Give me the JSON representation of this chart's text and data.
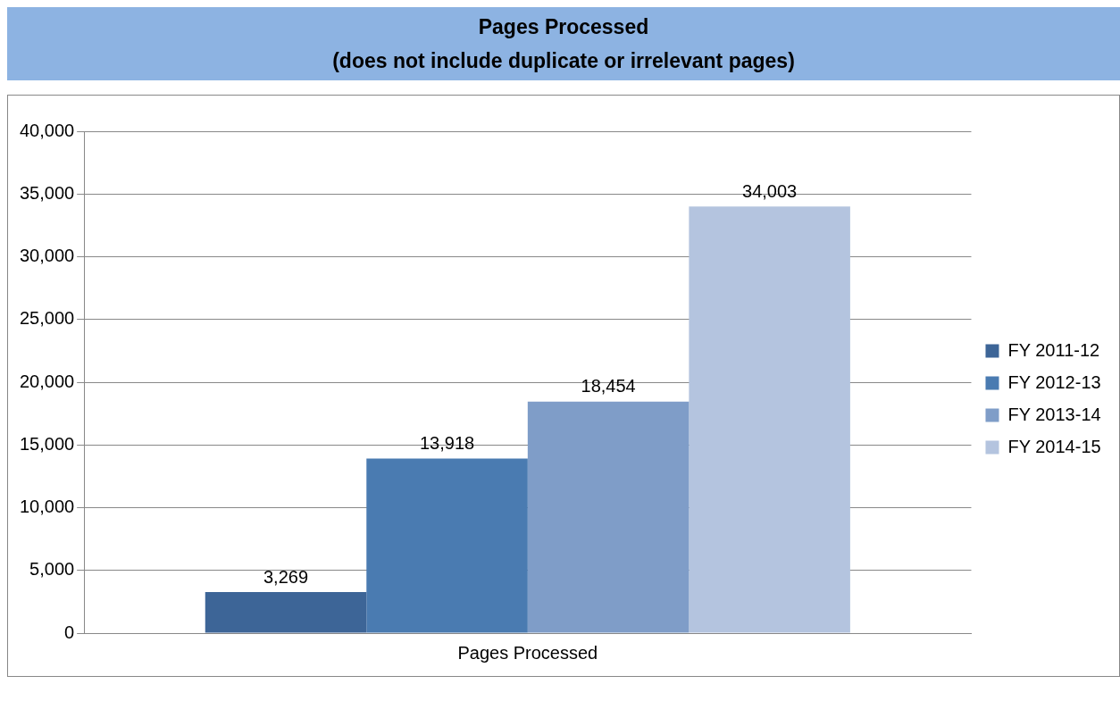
{
  "chart_data": {
    "type": "bar",
    "title": "Pages Processed",
    "subtitle": "(does not include duplicate or irrelevant pages)",
    "categories": [
      "Pages Processed"
    ],
    "series": [
      {
        "name": "FY 2011-12",
        "color": "#3d6597",
        "values": [
          3269
        ],
        "value_labels": [
          "3,269"
        ]
      },
      {
        "name": "FY 2012-13",
        "color": "#4a7bb1",
        "values": [
          13918
        ],
        "value_labels": [
          "13,918"
        ]
      },
      {
        "name": "FY 2013-14",
        "color": "#7f9dc8",
        "values": [
          18454
        ],
        "value_labels": [
          "18,454"
        ]
      },
      {
        "name": "FY 2014-15",
        "color": "#b4c4df",
        "values": [
          34003
        ],
        "value_labels": [
          "34,003"
        ]
      }
    ],
    "ylim": [
      0,
      40000
    ],
    "yticks": [
      {
        "value": 0,
        "label": "0"
      },
      {
        "value": 5000,
        "label": "5,000"
      },
      {
        "value": 10000,
        "label": "10,000"
      },
      {
        "value": 15000,
        "label": "15,000"
      },
      {
        "value": 20000,
        "label": "20,000"
      },
      {
        "value": 25000,
        "label": "25,000"
      },
      {
        "value": 30000,
        "label": "30,000"
      },
      {
        "value": 35000,
        "label": "35,000"
      },
      {
        "value": 40000,
        "label": "40,000"
      }
    ],
    "grid": "y",
    "legend": "right"
  }
}
